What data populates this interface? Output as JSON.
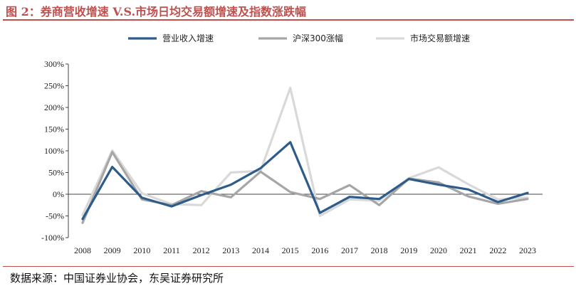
{
  "header": {
    "title": "图 2：券商营收增速 V.S.市场日均交易额增速及指数涨跌幅"
  },
  "footer": {
    "source": "数据来源：中国证券业协会，东吴证券研究所"
  },
  "chart_data": {
    "type": "line",
    "x": [
      "2008",
      "2009",
      "2010",
      "2011",
      "2012",
      "2013",
      "2014",
      "2015",
      "2016",
      "2017",
      "2018",
      "2019",
      "2020",
      "2021",
      "2022",
      "2023"
    ],
    "y_tick_labels": [
      "300%",
      "250%",
      "200%",
      "150%",
      "100%",
      "50%",
      "0%",
      "-50%",
      "-100%"
    ],
    "ylim": [
      -100,
      300
    ],
    "y_unit": "%",
    "legend_position": "top",
    "grid": false,
    "series": [
      {
        "name": "营业收入增速",
        "color": "#2e5c8a",
        "values": [
          -57,
          63,
          -8,
          -28,
          -2,
          22,
          60,
          120,
          -43,
          -6,
          -11,
          35,
          22,
          11,
          -18,
          3
        ]
      },
      {
        "name": "沪深300涨幅",
        "color": "#a6a6a6",
        "values": [
          -66,
          97,
          -12,
          -25,
          7,
          -7,
          52,
          5,
          -11,
          21,
          -25,
          36,
          27,
          -5,
          -22,
          -11
        ]
      },
      {
        "name": "市场交易额增速",
        "color": "#d9d9d9",
        "values": [
          -48,
          101,
          2,
          -23,
          -25,
          50,
          54,
          245,
          -50,
          -12,
          -15,
          37,
          62,
          23,
          -12,
          -8
        ]
      }
    ]
  }
}
